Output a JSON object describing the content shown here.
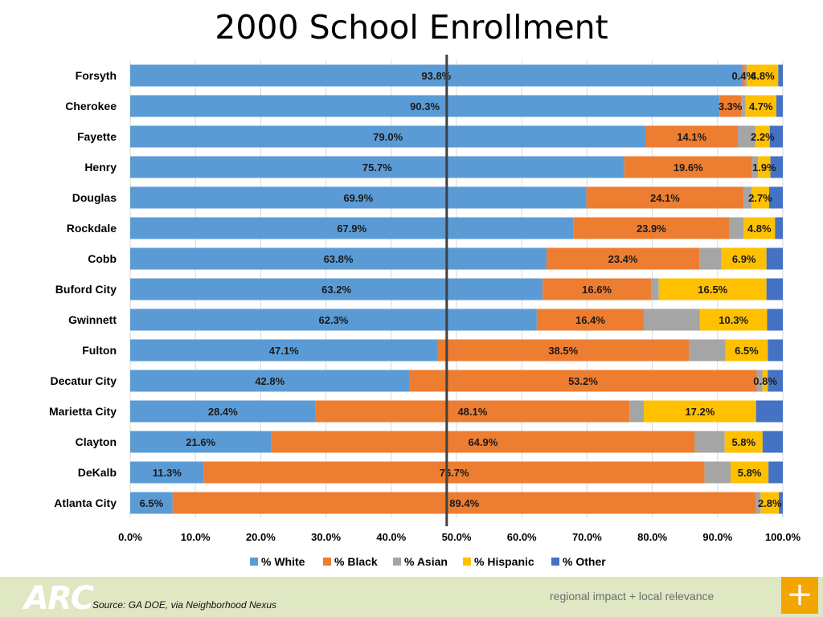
{
  "chart_data": {
    "type": "bar",
    "orientation": "horizontal",
    "stacked": true,
    "title": "2000 School Enrollment",
    "categories": [
      "Forsyth",
      "Cherokee",
      "Fayette",
      "Henry",
      "Douglas",
      "Rockdale",
      "Cobb",
      "Buford City",
      "Gwinnett",
      "Fulton",
      "Decatur City",
      "Marietta City",
      "Clayton",
      "DeKalb",
      "Atlanta City"
    ],
    "series": [
      {
        "name": "% White",
        "color": "#5b9bd5",
        "values": [
          93.8,
          90.3,
          79.0,
          75.7,
          69.9,
          67.9,
          63.8,
          63.2,
          62.3,
          47.1,
          42.8,
          28.4,
          21.6,
          11.3,
          6.5
        ]
      },
      {
        "name": "% Black",
        "color": "#ed7d31",
        "values": [
          0.4,
          3.3,
          14.1,
          19.6,
          24.1,
          23.9,
          23.4,
          16.6,
          16.4,
          38.5,
          53.2,
          48.1,
          64.9,
          76.7,
          89.4
        ]
      },
      {
        "name": "% Asian",
        "color": "#a5a5a5",
        "values": [
          0.3,
          0.7,
          2.7,
          0.9,
          1.2,
          2.2,
          3.4,
          1.2,
          8.6,
          5.6,
          0.9,
          2.2,
          4.6,
          4.0,
          0.7
        ]
      },
      {
        "name": "% Hispanic",
        "color": "#ffc000",
        "values": [
          4.8,
          4.7,
          2.2,
          1.9,
          2.7,
          4.8,
          6.9,
          16.5,
          10.3,
          6.5,
          0.8,
          17.2,
          5.8,
          5.8,
          2.8
        ]
      },
      {
        "name": "% Other",
        "color": "#4472c4",
        "values": [
          0.7,
          1.0,
          2.0,
          1.9,
          2.1,
          1.2,
          2.5,
          2.5,
          2.4,
          2.3,
          2.3,
          4.1,
          3.1,
          2.2,
          0.6
        ]
      }
    ],
    "data_labels": {
      "% White": [
        "93.8%",
        "90.3%",
        "79.0%",
        "75.7%",
        "69.9%",
        "67.9%",
        "63.8%",
        "63.2%",
        "62.3%",
        "47.1%",
        "42.8%",
        "28.4%",
        "21.6%",
        "11.3%",
        "6.5%"
      ],
      "% Black": [
        "0.4%",
        "3.3%",
        "14.1%",
        "19.6%",
        "24.1%",
        "23.9%",
        "23.4%",
        "16.6%",
        "16.4%",
        "38.5%",
        "53.2%",
        "48.1%",
        "64.9%",
        "76.7%",
        "89.4%"
      ],
      "% Hispanic": [
        "4.8%",
        "4.7%",
        "2.2%",
        "1.9%",
        "2.7%",
        "4.8%",
        "6.9%",
        "16.5%",
        "10.3%",
        "6.5%",
        "0.8%",
        "17.2%",
        "5.8%",
        "5.8%",
        "2.8%"
      ]
    },
    "xlim": [
      0,
      100
    ],
    "xticks": [
      "0.0%",
      "10.0%",
      "20.0%",
      "30.0%",
      "40.0%",
      "50.0%",
      "60.0%",
      "70.0%",
      "80.0%",
      "90.0%",
      "100.0%"
    ],
    "reference_line": 48.5,
    "grid": true,
    "legend": "bottom"
  },
  "footer": {
    "logo": "ARC",
    "source": "Source: GA DOE, via Neighborhood Nexus",
    "tagline": "regional impact + local relevance",
    "plus_icon": "plus-icon"
  }
}
